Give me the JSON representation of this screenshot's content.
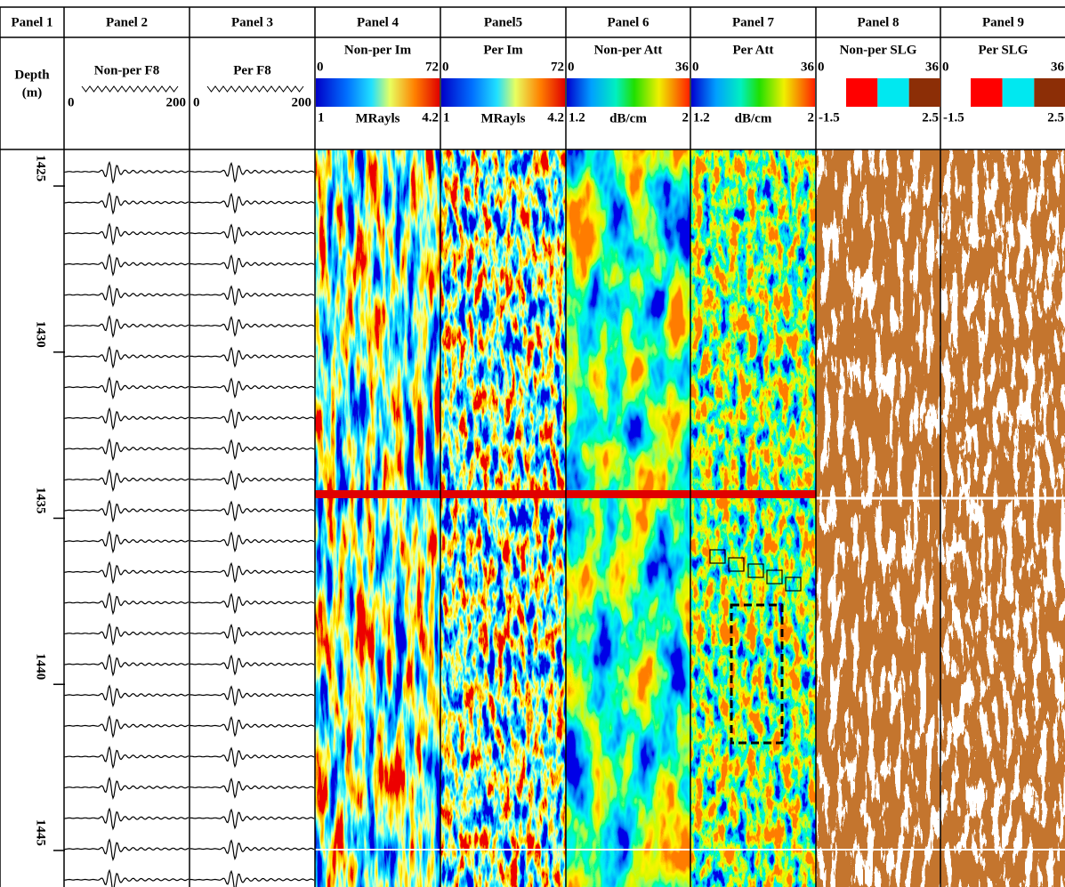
{
  "panels": [
    {
      "title": "Panel 1",
      "label": "Depth",
      "unit": "(m)"
    },
    {
      "title": "Panel 2",
      "label": "Non-per F8",
      "scale": [
        0,
        200
      ]
    },
    {
      "title": "Panel 3",
      "label": "Per F8",
      "scale": [
        0,
        200
      ]
    },
    {
      "title": "Panel 4",
      "label": "Non-per Im",
      "scale": [
        0,
        72
      ],
      "colorbar": [
        1,
        4.2
      ],
      "unit": "MRayls"
    },
    {
      "title": "Panel5",
      "label": "Per Im",
      "scale": [
        0,
        72
      ],
      "colorbar": [
        1,
        4.2
      ],
      "unit": "MRayls"
    },
    {
      "title": "Panel 6",
      "label": "Non-per Att",
      "scale": [
        0,
        36
      ],
      "colorbar": [
        1.2,
        2
      ],
      "unit": "dB/cm"
    },
    {
      "title": "Panel 7",
      "label": "Per Att",
      "scale": [
        0,
        36
      ],
      "colorbar": [
        1.2,
        2
      ],
      "unit": "dB/cm"
    },
    {
      "title": "Panel 8",
      "label": "Non-per SLG",
      "scale": [
        0,
        36
      ],
      "colorbar": [
        -1.5,
        2.5
      ]
    },
    {
      "title": "Panel 9",
      "label": "Per SLG",
      "scale": [
        0,
        36
      ],
      "colorbar": [
        -1.5,
        2.5
      ]
    }
  ],
  "depth": {
    "lim": [
      1423.9,
      1446.1
    ],
    "ticks": [
      1425,
      1430,
      1435,
      1440,
      1445
    ]
  }
}
